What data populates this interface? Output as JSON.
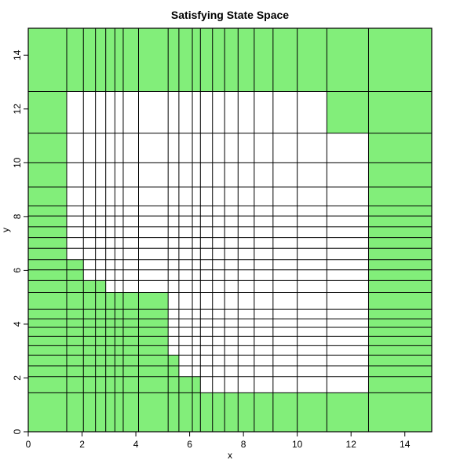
{
  "chart_data": {
    "type": "heatmap",
    "title": "Satisfying State Space",
    "xlabel": "x",
    "ylabel": "y",
    "xlim": [
      0,
      15
    ],
    "ylim": [
      0,
      15
    ],
    "x_ticks": [
      0,
      2,
      4,
      6,
      8,
      10,
      12,
      14
    ],
    "y_ticks": [
      0,
      2,
      4,
      6,
      8,
      10,
      12,
      14
    ],
    "x_breaks": [
      0,
      1.43,
      2.05,
      2.5,
      2.88,
      3.22,
      3.53,
      4.1,
      5.2,
      5.6,
      6.1,
      6.4,
      6.85,
      7.3,
      7.8,
      8.4,
      9.1,
      10.0,
      11.1,
      12.65,
      15
    ],
    "y_breaks": [
      0,
      1.45,
      2.05,
      2.45,
      2.85,
      3.2,
      3.55,
      3.88,
      4.2,
      4.55,
      5.18,
      5.62,
      6.02,
      6.4,
      6.82,
      7.22,
      7.62,
      8.02,
      8.4,
      9.1,
      10.0,
      11.1,
      12.65,
      15
    ],
    "regions": [
      {
        "x": [
          0,
          15
        ],
        "y": [
          0,
          1.45
        ],
        "satisfying": true
      },
      {
        "x": [
          0,
          15
        ],
        "y": [
          12.65,
          15
        ],
        "satisfying": true
      },
      {
        "x": [
          0,
          1.43
        ],
        "y": [
          1.45,
          12.65
        ],
        "satisfying": true
      },
      {
        "x": [
          12.65,
          15
        ],
        "y": [
          1.45,
          12.65
        ],
        "satisfying": true
      },
      {
        "x": [
          11.1,
          12.65
        ],
        "y": [
          11.1,
          12.65
        ],
        "satisfying": true
      },
      {
        "x": [
          1.43,
          2.05
        ],
        "y": [
          1.45,
          6.4
        ],
        "satisfying": true
      },
      {
        "x": [
          2.05,
          2.88
        ],
        "y": [
          1.45,
          5.62
        ],
        "satisfying": true
      },
      {
        "x": [
          2.88,
          4.1
        ],
        "y": [
          1.45,
          5.18
        ],
        "satisfying": true
      },
      {
        "x": [
          4.1,
          5.2
        ],
        "y": [
          1.45,
          5.18
        ],
        "satisfying": true
      },
      {
        "x": [
          5.2,
          5.6
        ],
        "y": [
          1.45,
          2.85
        ],
        "satisfying": true
      },
      {
        "x": [
          5.6,
          6.4
        ],
        "y": [
          1.45,
          2.05
        ],
        "satisfying": true
      }
    ],
    "colors": {
      "satisfying": "#82ee7a",
      "unsatisfying": "#ffffff",
      "grid": "#000000"
    },
    "grid": true,
    "legend": "none"
  }
}
